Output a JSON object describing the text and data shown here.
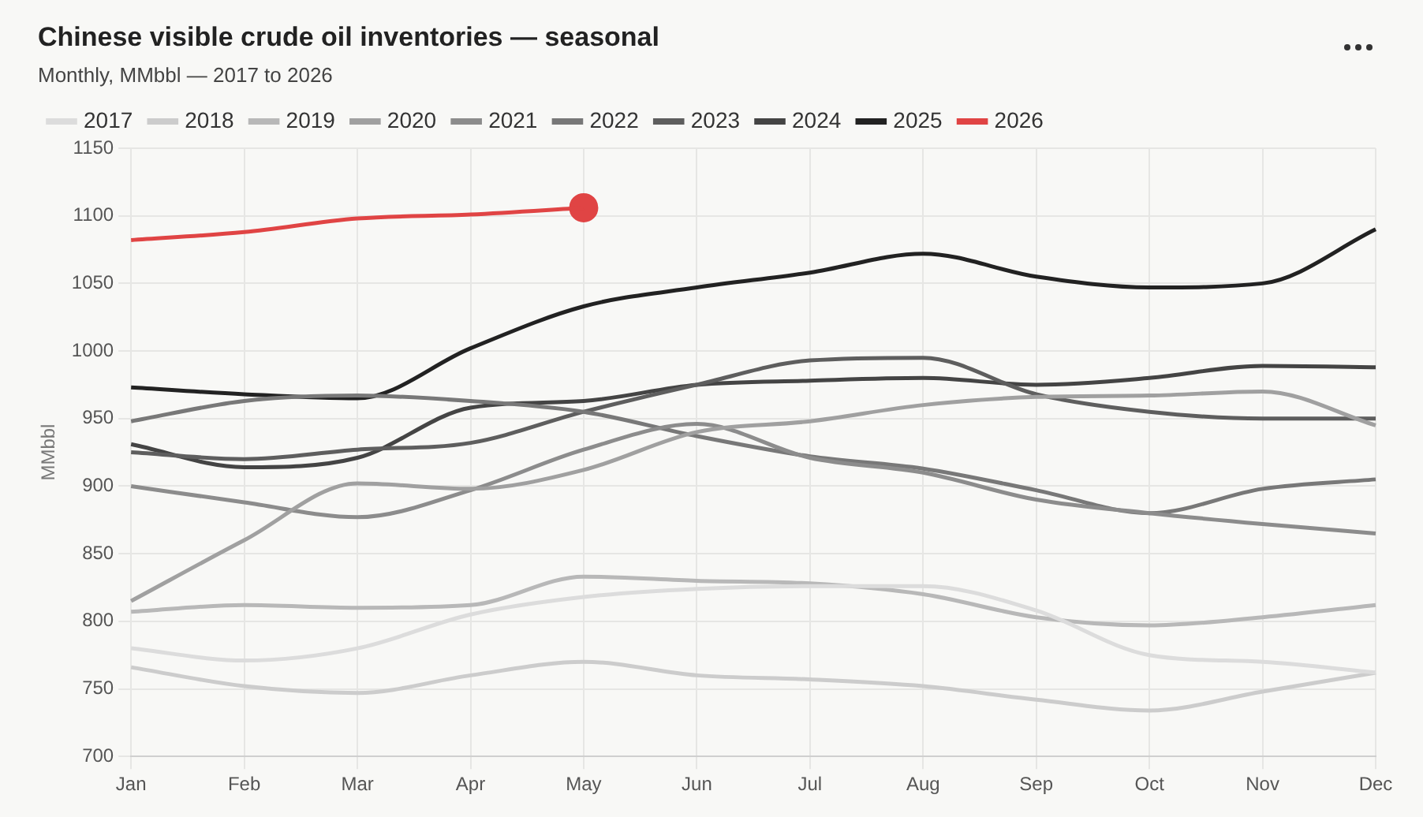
{
  "chart_data": {
    "type": "line",
    "title": "Chinese visible crude oil inventories — seasonal",
    "subtitle": "Monthly, MMbbl — 2017 to 2026",
    "ylabel": "MMbbl",
    "categories": [
      "Jan",
      "Feb",
      "Mar",
      "Apr",
      "May",
      "Jun",
      "Jul",
      "Aug",
      "Sep",
      "Oct",
      "Nov",
      "Dec"
    ],
    "series": [
      {
        "name": "2017",
        "color": "#dcdcdc",
        "values": [
          780,
          771,
          780,
          805,
          818,
          824,
          826,
          826,
          808,
          775,
          770,
          762
        ]
      },
      {
        "name": "2018",
        "color": "#cccccc",
        "values": [
          766,
          752,
          747,
          760,
          770,
          760,
          757,
          752,
          742,
          734,
          748,
          762
        ]
      },
      {
        "name": "2019",
        "color": "#b8b8b8",
        "values": [
          807,
          812,
          810,
          812,
          833,
          830,
          828,
          820,
          803,
          797,
          803,
          812
        ]
      },
      {
        "name": "2020",
        "color": "#a0a0a0",
        "values": [
          815,
          860,
          902,
          898,
          912,
          940,
          948,
          960,
          966,
          967,
          970,
          945
        ]
      },
      {
        "name": "2021",
        "color": "#8c8c8c",
        "values": [
          900,
          888,
          877,
          897,
          927,
          946,
          921,
          910,
          890,
          880,
          872,
          865
        ]
      },
      {
        "name": "2022",
        "color": "#787878",
        "values": [
          948,
          963,
          967,
          963,
          955,
          937,
          922,
          913,
          897,
          880,
          898,
          905
        ]
      },
      {
        "name": "2023",
        "color": "#5e5e5e",
        "values": [
          925,
          920,
          927,
          932,
          955,
          975,
          993,
          995,
          968,
          955,
          950,
          950
        ]
      },
      {
        "name": "2024",
        "color": "#444444",
        "values": [
          931,
          914,
          921,
          958,
          963,
          975,
          978,
          980,
          975,
          980,
          989,
          988
        ]
      },
      {
        "name": "2025",
        "color": "#222222",
        "values": [
          973,
          968,
          965,
          1002,
          1033,
          1047,
          1058,
          1072,
          1055,
          1047,
          1050,
          1090
        ]
      },
      {
        "name": "2026",
        "color": "#e04444",
        "values": [
          1082,
          1088,
          1098,
          1101,
          1106,
          null,
          null,
          null,
          null,
          null,
          null,
          null
        ]
      },
      {
        "type": "scatter",
        "color": "#e04444",
        "marker": "circle",
        "x": [
          "May"
        ],
        "values": [
          1106
        ]
      }
    ],
    "ylim": [
      700,
      1150
    ],
    "yticks": [
      700,
      750,
      800,
      850,
      900,
      950,
      1000,
      1050,
      1100,
      1150
    ],
    "grid": true,
    "legend": "top left",
    "marker": "none",
    "line_style": "solid"
  }
}
